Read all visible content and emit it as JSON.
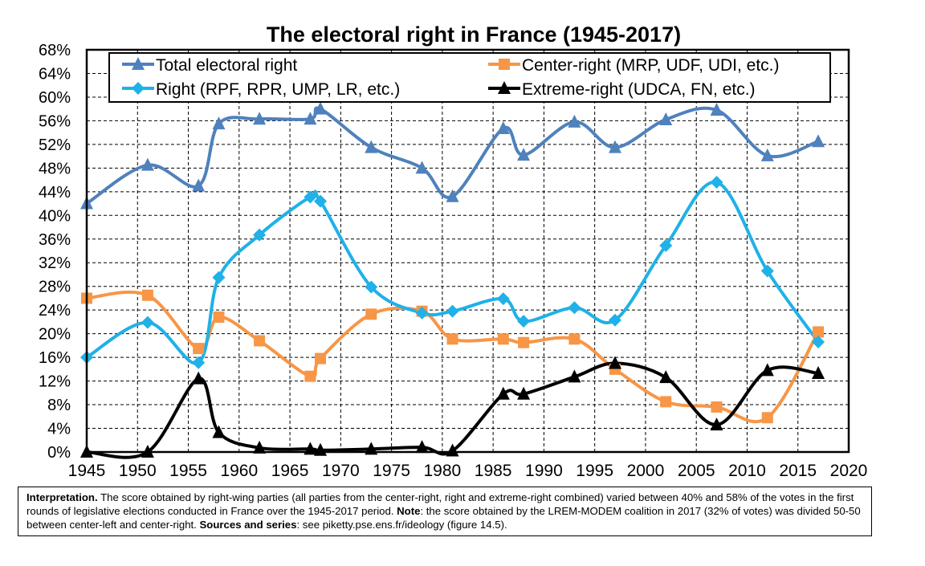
{
  "chart_data": {
    "type": "line",
    "title": "The electoral right in France (1945-2017)",
    "xlabel": "",
    "ylabel": "",
    "xlim": [
      1945,
      2020
    ],
    "ylim": [
      0,
      68
    ],
    "x_ticks": [
      "1945",
      "1950",
      "1955",
      "1960",
      "1965",
      "1970",
      "1975",
      "1980",
      "1985",
      "1990",
      "1995",
      "2000",
      "2005",
      "2010",
      "2015",
      "2020"
    ],
    "y_ticks": [
      "0%",
      "4%",
      "8%",
      "12%",
      "16%",
      "20%",
      "24%",
      "28%",
      "32%",
      "36%",
      "40%",
      "44%",
      "48%",
      "52%",
      "56%",
      "60%",
      "64%",
      "68%"
    ],
    "grid": true,
    "legend_position": "top",
    "x": [
      1945,
      1951,
      1956,
      1958,
      1962,
      1967,
      1968,
      1973,
      1978,
      1981,
      1986,
      1988,
      1993,
      1997,
      2002,
      2007,
      2012,
      2017
    ],
    "series": [
      {
        "name": "Total electoral right",
        "color": "#4F81BD",
        "marker": "triangle",
        "values": [
          42,
          48.5,
          45,
          55.5,
          56.3,
          56.3,
          58,
          51.5,
          48,
          43.2,
          54.7,
          50.2,
          55.8,
          51.5,
          56.2,
          57.8,
          50.1,
          52.5
        ]
      },
      {
        "name": "Center-right (MRP, UDF, UDI, etc.)",
        "color": "#F79646",
        "marker": "square",
        "values": [
          26,
          26.5,
          17.5,
          22.8,
          18.8,
          12.8,
          15.8,
          23.3,
          23.8,
          19.1,
          19.1,
          18.5,
          19.1,
          14,
          8.5,
          7.6,
          5.8,
          20.3
        ]
      },
      {
        "name": "Right (RPF, RPR, UMP, LR, etc.)",
        "color": "#1FB1E8",
        "marker": "diamond",
        "values": [
          16,
          21.9,
          15.1,
          29.5,
          36.7,
          43.1,
          42.4,
          27.9,
          23.5,
          23.8,
          25.9,
          22.1,
          24.4,
          22.3,
          34.9,
          45.6,
          30.6,
          18.6
        ]
      },
      {
        "name": "Extreme-right (UDCA, FN, etc.)",
        "color": "#000000",
        "marker": "triangle",
        "values": [
          0,
          0,
          12.4,
          3.3,
          0.7,
          0.5,
          0.3,
          0.5,
          0.8,
          0.2,
          9.8,
          9.8,
          12.7,
          15,
          12.6,
          4.6,
          13.8,
          13.3
        ]
      }
    ]
  },
  "note": {
    "label": "Interpretation.",
    "text_1": " The score obtained by right-wing parties (all parties from the center-right, right and extreme-right combined) varied between 40% and 58% of the votes in the first rounds of legislative elections conducted in France over the 1945-2017 period. ",
    "note_label": "Note",
    "text_2": ": the score obtained by the LREM-MODEM coalition in 2017 (32% of votes) was divided 50-50 between center-left and center-right. ",
    "sources_label": "Sources and series",
    "text_3": ": see piketty.pse.ens.fr/ideology (figure 14.5)."
  }
}
